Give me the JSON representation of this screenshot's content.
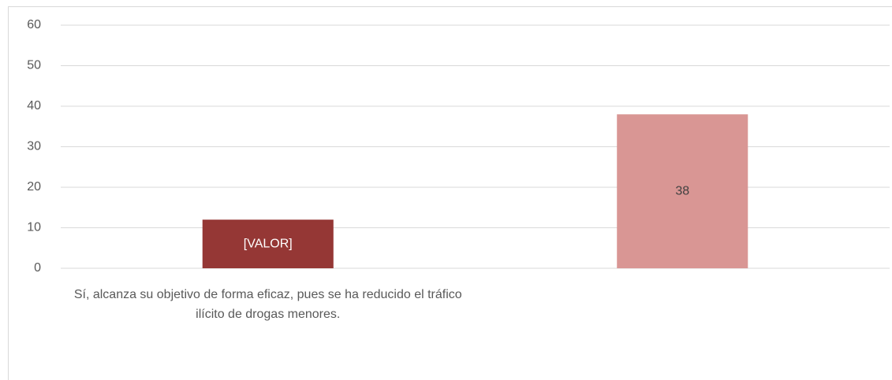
{
  "chart_data": {
    "type": "bar",
    "categories": [
      "Sí, alcanza su objetivo de forma eficaz, pues se ha reducido el tráfico ilícito de drogas menores.",
      null
    ],
    "values": [
      12,
      38
    ],
    "value_labels": [
      "[VALOR]",
      "38"
    ],
    "colors": [
      "#953735",
      "#d99694"
    ],
    "ylim": [
      0,
      60
    ],
    "yticks": [
      0,
      10,
      20,
      30,
      40,
      50,
      60
    ],
    "grid": true
  }
}
